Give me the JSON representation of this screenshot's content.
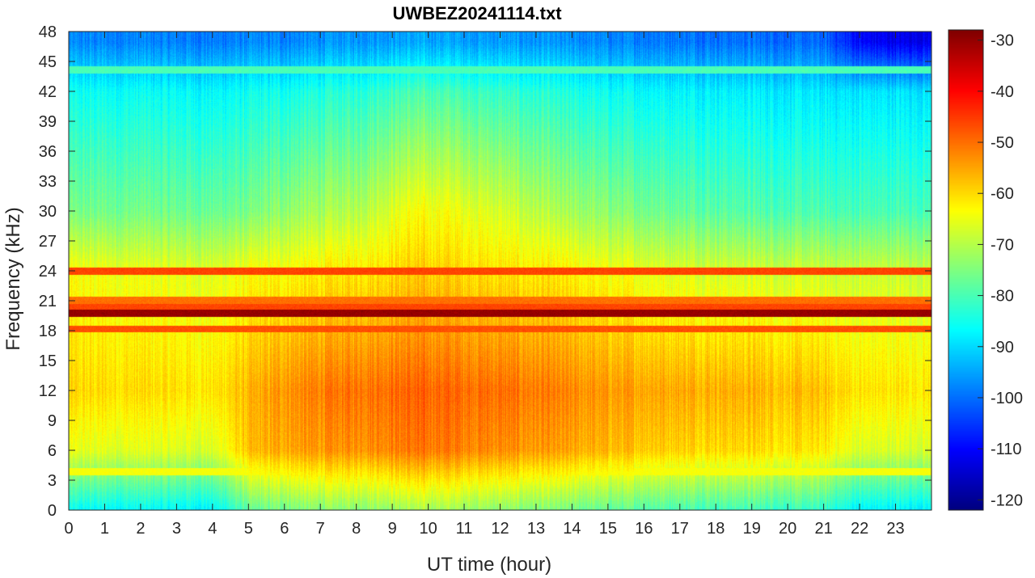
{
  "chart_data": {
    "type": "heatmap",
    "title": "UWBEZ20241114.txt",
    "xlabel": "UT time (hour)",
    "ylabel": "Frequency (kHz)",
    "xlim": [
      0,
      24
    ],
    "ylim": [
      0,
      48
    ],
    "x_ticks": [
      0,
      1,
      2,
      3,
      4,
      5,
      6,
      7,
      8,
      9,
      10,
      11,
      12,
      13,
      14,
      15,
      16,
      17,
      18,
      19,
      20,
      21,
      22,
      23
    ],
    "y_ticks": [
      0,
      3,
      6,
      9,
      12,
      15,
      18,
      21,
      24,
      27,
      30,
      33,
      36,
      39,
      42,
      45,
      48
    ],
    "colorbar": {
      "colormap": "jet",
      "limits": [
        -122,
        -28
      ],
      "ticks": [
        -120,
        -110,
        -100,
        -90,
        -80,
        -70,
        -60,
        -50,
        -40,
        -30
      ]
    },
    "background_levels_db": {
      "hours": [
        0,
        2,
        4,
        5,
        6,
        8,
        9.5,
        10.5,
        12,
        13.5,
        15,
        17,
        19,
        21,
        22,
        23,
        24
      ],
      "freq_6khz": [
        -66,
        -66,
        -67,
        -58,
        -55,
        -53,
        -51,
        -51,
        -53,
        -55,
        -57,
        -59,
        -60,
        -62,
        -67,
        -67,
        -67
      ],
      "freq_12khz": [
        -60,
        -60,
        -61,
        -57,
        -53,
        -50,
        -49,
        -49,
        -50,
        -52,
        -54,
        -55,
        -56,
        -58,
        -61,
        -61,
        -61
      ],
      "freq_24khz": [
        -64,
        -65,
        -66,
        -64,
        -63,
        -61,
        -59,
        -59,
        -61,
        -62,
        -64,
        -66,
        -67,
        -68,
        -68,
        -68,
        -68
      ],
      "freq_30khz": [
        -76,
        -76,
        -77,
        -76,
        -73,
        -70,
        -64,
        -64,
        -67,
        -71,
        -74,
        -77,
        -79,
        -80,
        -80,
        -80,
        -80
      ],
      "freq_42khz": [
        -86,
        -86,
        -87,
        -86,
        -85,
        -83,
        -80,
        -80,
        -82,
        -84,
        -86,
        -87,
        -88,
        -89,
        -89,
        -89,
        -89
      ],
      "freq_47khz": [
        -98,
        -98,
        -99,
        -98,
        -98,
        -96,
        -95,
        -95,
        -96,
        -97,
        -98,
        -99,
        -100,
        -101,
        -110,
        -112,
        -112
      ]
    },
    "narrowband_lines_khz": [
      {
        "freq": 19.8,
        "level_db": -30
      },
      {
        "freq": 24.0,
        "level_db": -46
      },
      {
        "freq": 18.2,
        "level_db": -47
      },
      {
        "freq": 21.1,
        "level_db": -50
      },
      {
        "freq": 20.4,
        "level_db": -46
      },
      {
        "freq": 44.2,
        "level_db": -80
      },
      {
        "freq": 3.9,
        "level_db": -64
      }
    ]
  }
}
